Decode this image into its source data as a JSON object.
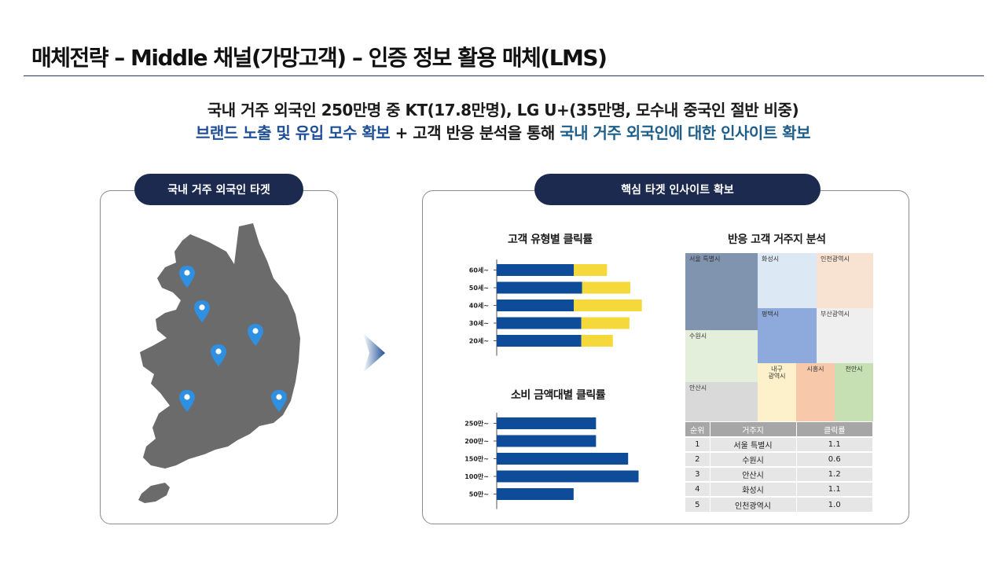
{
  "page": {
    "title": "매체전략 – Middle 채널(가망고객) – 인증 정보 활용 매체(LMS)"
  },
  "headline": {
    "line1": "국내 거주 외국인 250만명 중 KT(17.8만명), LG U+(35만명, 모수내 중국인 절반 비중)",
    "line2_part1": "브랜드 노출 및 유입 모수 확보",
    "line2_part2": " + 고객 반응 분석을 통해 ",
    "line2_part3": "국내 거주 외국인에 대한 인사이트 확보"
  },
  "left_panel": {
    "label": "국내 거주 외국인 타겟",
    "map_icon": "south-korea-map",
    "pin_icon": "location-pin-icon",
    "pin_count": 6
  },
  "right_panel": {
    "label": "핵심 타겟 인사이트 확보"
  },
  "colors": {
    "navy": "#1c2a4f",
    "bar_blue": "#0e4c9a",
    "bar_yellow": "#f5d93a",
    "map_gray": "#6b6b6b",
    "pin_blue": "#2f8fe0"
  },
  "chart_data": [
    {
      "type": "bar",
      "orientation": "horizontal",
      "stacked": true,
      "title": "고객 유형별 클릭률",
      "categories": [
        "60세~",
        "50세~",
        "40세~",
        "30세~",
        "20세~"
      ],
      "series": [
        {
          "values": [
            93,
            103,
            93,
            102,
            102
          ]
        },
        {
          "values": [
            40,
            58,
            82,
            58,
            38
          ]
        }
      ],
      "xlim": [
        0,
        180
      ],
      "grid": false,
      "legend": "none"
    },
    {
      "type": "bar",
      "orientation": "horizontal",
      "title": "소비 금액대별 클릭률",
      "categories": [
        "250만~",
        "200만~",
        "150만~",
        "100만~",
        "50만~"
      ],
      "values": [
        133,
        133,
        176,
        190,
        103
      ],
      "xlim": [
        0,
        200
      ],
      "grid": false,
      "legend": "none"
    },
    {
      "type": "treemap",
      "title": "반응 고객 거주지 분석",
      "cells": [
        {
          "name": "서울 특별시",
          "color": "#8094b0"
        },
        {
          "name": "화성시",
          "color": "#dde8f5"
        },
        {
          "name": "인천광역시",
          "color": "#f8e3d3"
        },
        {
          "name": "평택시",
          "color": "#8eaadc"
        },
        {
          "name": "부산광역시",
          "color": "#efefef"
        },
        {
          "name": "수원시",
          "color": "#e3efda"
        },
        {
          "name": "내구\n광역시",
          "color": "#fdf1cb"
        },
        {
          "name": "시흥시",
          "color": "#f7c9aa"
        },
        {
          "name": "천안시",
          "color": "#c7e0b3"
        },
        {
          "name": "안산시",
          "color": "#d9d9d9"
        }
      ]
    }
  ],
  "rank_table": {
    "headers": [
      "순위",
      "거주지",
      "클릭률"
    ],
    "rows": [
      [
        "1",
        "서울 특별시",
        "1.1"
      ],
      [
        "2",
        "수원시",
        "0.6"
      ],
      [
        "3",
        "안산시",
        "1.2"
      ],
      [
        "4",
        "화성시",
        "1.1"
      ],
      [
        "5",
        "인천광역시",
        "1.0"
      ]
    ]
  }
}
